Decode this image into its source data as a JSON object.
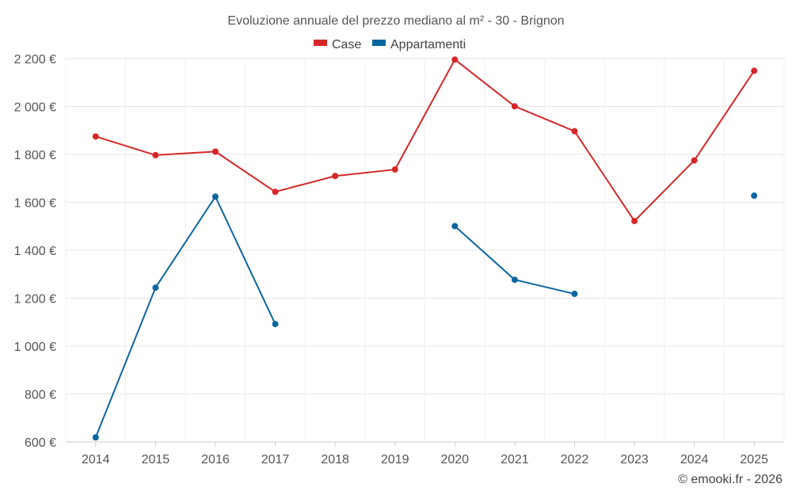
{
  "chart_data": {
    "type": "line",
    "title": "Evoluzione annuale del prezzo mediano al m² - 30 - Brignon",
    "categories": [
      "2014",
      "2015",
      "2016",
      "2017",
      "2018",
      "2019",
      "2020",
      "2021",
      "2022",
      "2023",
      "2024",
      "2025"
    ],
    "series": [
      {
        "name": "Case",
        "color": "#d62728",
        "values": [
          1875,
          1797,
          1812,
          1644,
          1710,
          1737,
          2196,
          2001,
          1897,
          1522,
          1775,
          2149
        ]
      },
      {
        "name": "Appartamenti",
        "color": "#0b66a0",
        "values": [
          619,
          1244,
          1624,
          1092,
          null,
          null,
          1501,
          1277,
          1218,
          null,
          null,
          1628
        ]
      }
    ],
    "ylim": [
      600,
      2200
    ],
    "yticks": [
      600,
      800,
      1000,
      1200,
      1400,
      1600,
      1800,
      2000,
      2200
    ],
    "ytick_labels": [
      "600 €",
      "800 €",
      "1 000 €",
      "1 200 €",
      "1 400 €",
      "1 600 €",
      "1 800 €",
      "2 000 €",
      "2 200 €"
    ],
    "xlabel": "",
    "ylabel": "",
    "grid": true,
    "legend_position": "top-center"
  },
  "credit": "© emooki.fr - 2026"
}
